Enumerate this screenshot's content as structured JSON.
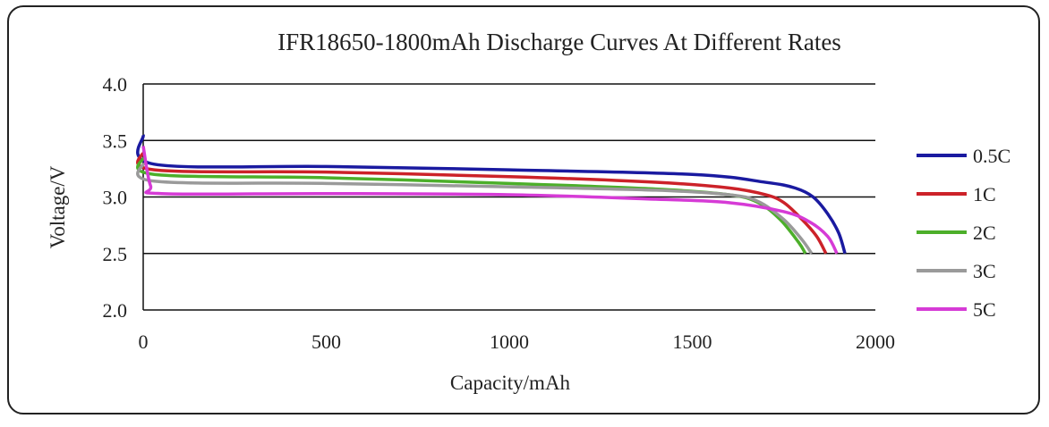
{
  "chart_data": {
    "type": "line",
    "title": "IFR18650-1800mAh  Discharge Curves At Different Rates",
    "xlabel": "Capacity/mAh",
    "ylabel": "Voltage/V",
    "xlim": [
      0,
      2000
    ],
    "ylim": [
      2.0,
      4.0
    ],
    "xticks": [
      "0",
      "500",
      "1000",
      "1500",
      "2000"
    ],
    "yticks": [
      "4.0",
      "3.5",
      "3.0",
      "2.5",
      "2.0"
    ],
    "grid": "horizontal",
    "legend": "right",
    "series": [
      {
        "name": "0.5C",
        "color": "#1a1aa0",
        "x": [
          0,
          30,
          500,
          1000,
          1500,
          1700,
          1780,
          1830,
          1870,
          1900,
          1917
        ],
        "y": [
          3.55,
          3.29,
          3.27,
          3.24,
          3.2,
          3.13,
          3.08,
          3.0,
          2.85,
          2.68,
          2.5
        ]
      },
      {
        "name": "1C",
        "color": "#cc2229",
        "x": [
          0,
          30,
          500,
          1000,
          1400,
          1600,
          1700,
          1750,
          1800,
          1840,
          1865
        ],
        "y": [
          3.4,
          3.24,
          3.22,
          3.18,
          3.13,
          3.08,
          3.02,
          2.95,
          2.8,
          2.65,
          2.5
        ]
      },
      {
        "name": "2C",
        "color": "#4caf2a",
        "x": [
          0,
          30,
          500,
          1000,
          1400,
          1600,
          1680,
          1740,
          1790,
          1809
        ],
        "y": [
          3.35,
          3.2,
          3.17,
          3.12,
          3.07,
          3.02,
          2.95,
          2.8,
          2.6,
          2.5
        ]
      },
      {
        "name": "3C",
        "color": "#9a9a9a",
        "x": [
          0,
          30,
          500,
          1000,
          1400,
          1600,
          1680,
          1750,
          1800,
          1826
        ],
        "y": [
          3.3,
          3.14,
          3.12,
          3.09,
          3.06,
          3.02,
          2.96,
          2.8,
          2.62,
          2.5
        ]
      },
      {
        "name": "5C",
        "color": "#d63bd6",
        "x": [
          0,
          20,
          50,
          500,
          1000,
          1400,
          1600,
          1750,
          1820,
          1870,
          1895
        ],
        "y": [
          3.45,
          3.1,
          3.03,
          3.03,
          3.02,
          2.98,
          2.95,
          2.87,
          2.78,
          2.65,
          2.5
        ]
      }
    ]
  }
}
